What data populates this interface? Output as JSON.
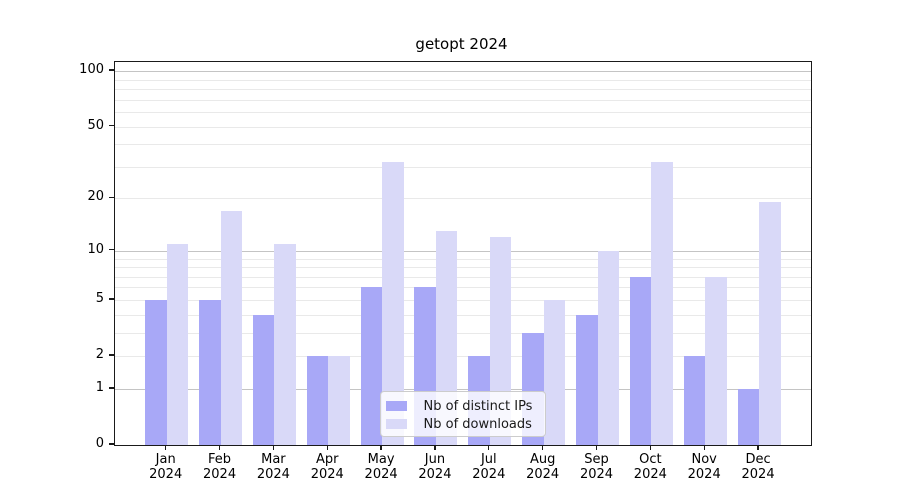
{
  "title": "getopt 2024",
  "chart_data": {
    "type": "bar",
    "title": "getopt 2024",
    "categories": [
      "Jan",
      "Feb",
      "Mar",
      "Apr",
      "May",
      "Jun",
      "Jul",
      "Aug",
      "Sep",
      "Oct",
      "Nov",
      "Dec"
    ],
    "year_label": "2024",
    "series": [
      {
        "name": "Nb of distinct IPs",
        "color": "#a8a8f7",
        "values": [
          5,
          5,
          4,
          2,
          6,
          6,
          2,
          3,
          4,
          7,
          2,
          1
        ]
      },
      {
        "name": "Nb of downloads",
        "color": "#d9d9f8",
        "values": [
          11,
          17,
          11,
          2,
          32,
          13,
          12,
          5,
          10,
          32,
          7,
          19
        ]
      }
    ],
    "xlabel": "",
    "ylabel": "",
    "yscale": "log1p",
    "ylim": [
      0,
      112
    ],
    "ytick_labels": [
      0,
      1,
      2,
      5,
      10,
      20,
      50,
      100
    ],
    "major_gridlines": [
      1,
      10,
      100
    ],
    "minor_gridlines": [
      2,
      3,
      4,
      5,
      6,
      7,
      8,
      9,
      20,
      30,
      40,
      50,
      60,
      70,
      80,
      90
    ],
    "grid": true,
    "legend_position": "lower center"
  },
  "colors": {
    "bar_distinct_ips": "#a8a8f7",
    "bar_downloads": "#d9d9f8",
    "grid_major": "#c4c4c4",
    "grid_minor": "#e9e9e9",
    "axis": "#1a1a1a",
    "legend_border": "#cccccc"
  }
}
